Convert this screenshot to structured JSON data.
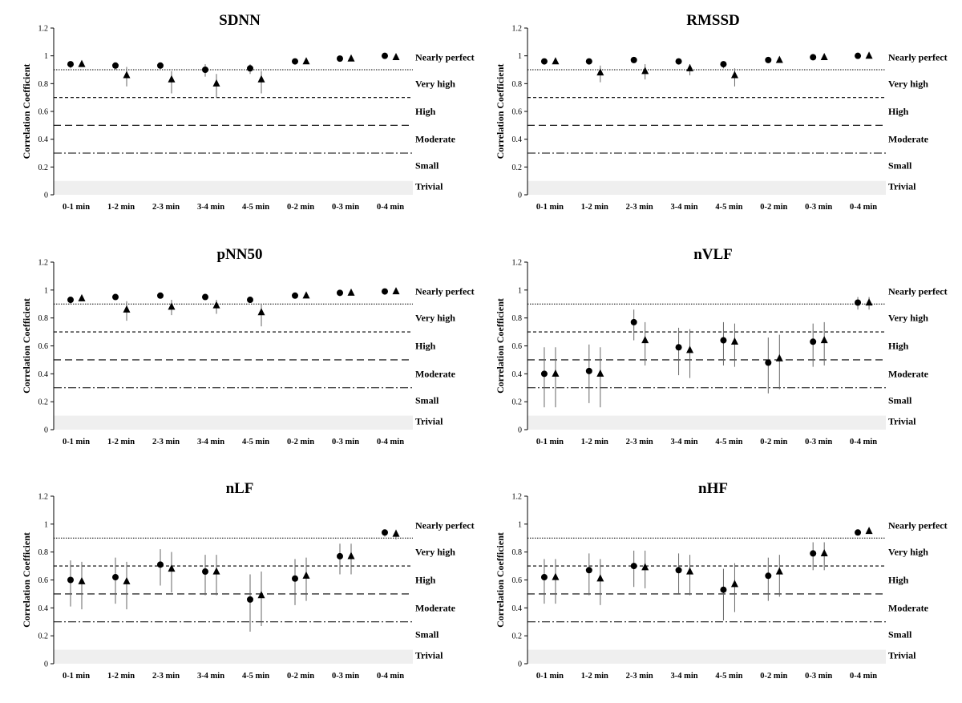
{
  "chart_data": [
    {
      "type": "scatter",
      "title": "SDNN",
      "ylabel": "Correlation Coefficient",
      "ylim": [
        0,
        1.2
      ],
      "yticks": [
        "0",
        "0.2",
        "0.4",
        "0.6",
        "0.8",
        "1",
        "1.2"
      ],
      "categories": [
        "0-1 min",
        "1-2 min",
        "2-3 min",
        "3-4 min",
        "4-5 min",
        "0-2 min",
        "0-3 min",
        "0-4 min"
      ],
      "thresholds": [
        0.1,
        0.3,
        0.5,
        0.7,
        0.9
      ],
      "zones": [
        "Nearly perfect",
        "Very high",
        "High",
        "Moderate",
        "Small",
        "Trivial"
      ],
      "series": [
        {
          "marker": "circle",
          "values": [
            0.94,
            0.93,
            0.93,
            0.9,
            0.91,
            0.96,
            0.98,
            1.0
          ],
          "err_low": [
            0.91,
            0.9,
            0.9,
            0.85,
            0.87,
            0.95,
            0.97,
            0.99
          ],
          "err_high": [
            0.96,
            0.95,
            0.95,
            0.94,
            0.94,
            0.98,
            0.99,
            1.0
          ]
        },
        {
          "marker": "triangle",
          "values": [
            0.94,
            0.86,
            0.83,
            0.8,
            0.83,
            0.96,
            0.98,
            0.99
          ],
          "err_low": [
            0.92,
            0.78,
            0.73,
            0.7,
            0.73,
            0.95,
            0.97,
            0.98
          ],
          "err_high": [
            0.96,
            0.92,
            0.89,
            0.87,
            0.89,
            0.98,
            0.99,
            1.0
          ]
        }
      ]
    },
    {
      "type": "scatter",
      "title": "RMSSD",
      "ylabel": "Correlation Coefficient",
      "ylim": [
        0,
        1.2
      ],
      "yticks": [
        "0",
        "0.2",
        "0.4",
        "0.6",
        "0.8",
        "1",
        "1.2"
      ],
      "categories": [
        "0-1 min",
        "1-2 min",
        "2-3 min",
        "3-4 min",
        "4-5 min",
        "0-2 min",
        "0-3 min",
        "0-4 min"
      ],
      "thresholds": [
        0.1,
        0.3,
        0.5,
        0.7,
        0.9
      ],
      "zones": [
        "Nearly perfect",
        "Very high",
        "High",
        "Moderate",
        "Small",
        "Trivial"
      ],
      "series": [
        {
          "marker": "circle",
          "values": [
            0.96,
            0.96,
            0.97,
            0.96,
            0.94,
            0.97,
            0.99,
            1.0
          ],
          "err_low": [
            0.95,
            0.95,
            0.96,
            0.95,
            0.91,
            0.96,
            0.98,
            0.99
          ],
          "err_high": [
            0.97,
            0.97,
            0.98,
            0.97,
            0.96,
            0.98,
            1.0,
            1.0
          ]
        },
        {
          "marker": "triangle",
          "values": [
            0.96,
            0.88,
            0.89,
            0.91,
            0.86,
            0.97,
            0.99,
            1.0
          ],
          "err_low": [
            0.95,
            0.81,
            0.83,
            0.86,
            0.78,
            0.96,
            0.98,
            0.99
          ],
          "err_high": [
            0.97,
            0.93,
            0.94,
            0.94,
            0.91,
            0.98,
            1.0,
            1.0
          ]
        }
      ]
    },
    {
      "type": "scatter",
      "title": "pNN50",
      "ylabel": "Correlation Coefficient",
      "ylim": [
        0,
        1.2
      ],
      "yticks": [
        "0",
        "0.2",
        "0.4",
        "0.6",
        "0.8",
        "1",
        "1.2"
      ],
      "categories": [
        "0-1 min",
        "1-2 min",
        "2-3 min",
        "3-4 min",
        "4-5 min",
        "0-2 min",
        "0-3 min",
        "0-4 min"
      ],
      "thresholds": [
        0.1,
        0.3,
        0.5,
        0.7,
        0.9
      ],
      "zones": [
        "Nearly perfect",
        "Very high",
        "High",
        "Moderate",
        "Small",
        "Trivial"
      ],
      "series": [
        {
          "marker": "circle",
          "values": [
            0.93,
            0.95,
            0.96,
            0.95,
            0.93,
            0.96,
            0.98,
            0.99
          ],
          "err_low": [
            0.9,
            0.94,
            0.95,
            0.94,
            0.91,
            0.95,
            0.97,
            0.98
          ],
          "err_high": [
            0.95,
            0.96,
            0.97,
            0.96,
            0.94,
            0.97,
            0.99,
            1.0
          ]
        },
        {
          "marker": "triangle",
          "values": [
            0.94,
            0.86,
            0.88,
            0.89,
            0.84,
            0.96,
            0.98,
            0.99
          ],
          "err_low": [
            0.92,
            0.78,
            0.82,
            0.83,
            0.74,
            0.95,
            0.97,
            0.98
          ],
          "err_high": [
            0.96,
            0.92,
            0.93,
            0.93,
            0.9,
            0.97,
            0.99,
            1.0
          ]
        }
      ]
    },
    {
      "type": "scatter",
      "title": "nVLF",
      "ylabel": "Correlation Coefficient",
      "ylim": [
        0,
        1.2
      ],
      "yticks": [
        "0",
        "0.2",
        "0.4",
        "0.6",
        "0.8",
        "1",
        "1.2"
      ],
      "categories": [
        "0-1 min",
        "1-2 min",
        "2-3 min",
        "3-4 min",
        "4-5 min",
        "0-2 min",
        "0-3 min",
        "0-4 min"
      ],
      "thresholds": [
        0.1,
        0.3,
        0.5,
        0.7,
        0.9
      ],
      "zones": [
        "Nearly perfect",
        "Very high",
        "High",
        "Moderate",
        "Small",
        "Trivial"
      ],
      "series": [
        {
          "marker": "circle",
          "values": [
            0.4,
            0.42,
            0.77,
            0.59,
            0.64,
            0.48,
            0.63,
            0.91
          ],
          "err_low": [
            0.16,
            0.19,
            0.64,
            0.39,
            0.46,
            0.26,
            0.45,
            0.86
          ],
          "err_high": [
            0.59,
            0.61,
            0.86,
            0.73,
            0.77,
            0.66,
            0.76,
            0.95
          ]
        },
        {
          "marker": "triangle",
          "values": [
            0.4,
            0.4,
            0.64,
            0.57,
            0.63,
            0.51,
            0.64,
            0.91
          ],
          "err_low": [
            0.16,
            0.16,
            0.46,
            0.37,
            0.45,
            0.29,
            0.46,
            0.86
          ],
          "err_high": [
            0.59,
            0.59,
            0.77,
            0.72,
            0.76,
            0.68,
            0.77,
            0.95
          ]
        }
      ]
    },
    {
      "type": "scatter",
      "title": "nLF",
      "ylabel": "Correlation Coefficient",
      "ylim": [
        0,
        1.2
      ],
      "yticks": [
        "0",
        "0.2",
        "0.4",
        "0.6",
        "0.8",
        "1",
        "1.2"
      ],
      "categories": [
        "0-1 min",
        "1-2 min",
        "2-3 min",
        "3-4 min",
        "4-5 min",
        "0-2 min",
        "0-3 min",
        "0-4 min"
      ],
      "thresholds": [
        0.1,
        0.3,
        0.5,
        0.7,
        0.9
      ],
      "zones": [
        "Nearly perfect",
        "Very high",
        "High",
        "Moderate",
        "Small",
        "Trivial"
      ],
      "series": [
        {
          "marker": "circle",
          "values": [
            0.6,
            0.62,
            0.71,
            0.66,
            0.46,
            0.61,
            0.77,
            0.94
          ],
          "err_low": [
            0.41,
            0.43,
            0.56,
            0.49,
            0.23,
            0.42,
            0.64,
            0.91
          ],
          "err_high": [
            0.74,
            0.76,
            0.82,
            0.78,
            0.64,
            0.75,
            0.86,
            0.96
          ]
        },
        {
          "marker": "triangle",
          "values": [
            0.59,
            0.59,
            0.68,
            0.66,
            0.49,
            0.63,
            0.77,
            0.93
          ],
          "err_low": [
            0.39,
            0.39,
            0.51,
            0.49,
            0.27,
            0.45,
            0.64,
            0.89
          ],
          "err_high": [
            0.73,
            0.73,
            0.8,
            0.78,
            0.66,
            0.76,
            0.86,
            0.96
          ]
        }
      ]
    },
    {
      "type": "scatter",
      "title": "nHF",
      "ylabel": "Correlation Coefficient",
      "ylim": [
        0,
        1.2
      ],
      "yticks": [
        "0",
        "0.2",
        "0.4",
        "0.6",
        "0.8",
        "1",
        "1.2"
      ],
      "categories": [
        "0-1 min",
        "1-2 min",
        "2-3 min",
        "3-4 min",
        "4-5 min",
        "0-2 min",
        "0-3 min",
        "0-4 min"
      ],
      "thresholds": [
        0.1,
        0.3,
        0.5,
        0.7,
        0.9
      ],
      "zones": [
        "Nearly perfect",
        "Very high",
        "High",
        "Moderate",
        "Small",
        "Trivial"
      ],
      "series": [
        {
          "marker": "circle",
          "values": [
            0.62,
            0.67,
            0.7,
            0.67,
            0.53,
            0.63,
            0.79,
            0.94
          ],
          "err_low": [
            0.43,
            0.49,
            0.55,
            0.5,
            0.31,
            0.45,
            0.67,
            0.92
          ],
          "err_high": [
            0.75,
            0.79,
            0.81,
            0.79,
            0.68,
            0.76,
            0.87,
            0.96
          ]
        },
        {
          "marker": "triangle",
          "values": [
            0.62,
            0.61,
            0.69,
            0.66,
            0.57,
            0.66,
            0.79,
            0.95
          ],
          "err_low": [
            0.43,
            0.42,
            0.54,
            0.49,
            0.37,
            0.48,
            0.67,
            0.93
          ],
          "err_high": [
            0.75,
            0.75,
            0.81,
            0.78,
            0.72,
            0.78,
            0.87,
            0.96
          ]
        }
      ]
    }
  ],
  "colors": {
    "marker": "#000000",
    "error_bar": "#666666",
    "trivial_band": "#efefef",
    "axis": "#000000"
  }
}
